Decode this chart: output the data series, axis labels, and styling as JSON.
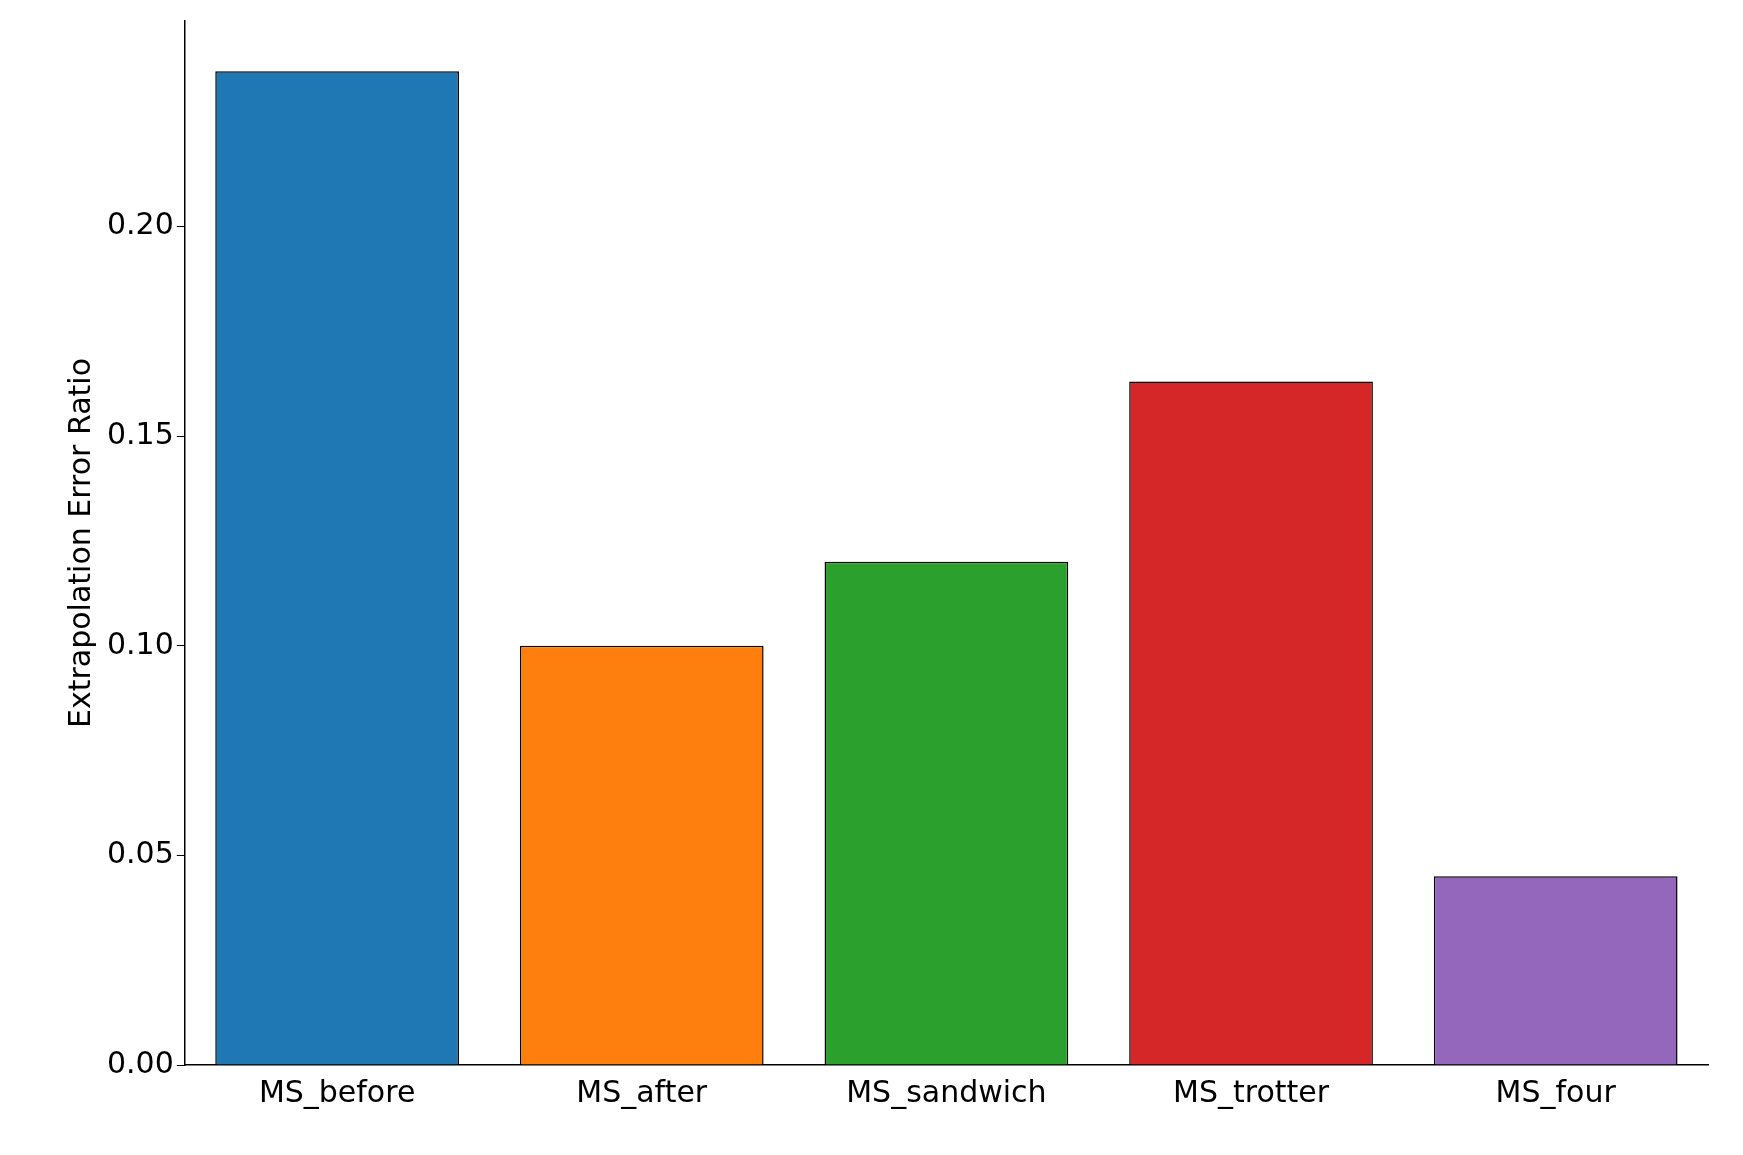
{
  "chart_data": {
    "type": "bar",
    "ylabel": "Extrapolation Error Ratio",
    "categories": [
      "MS_before",
      "MS_after",
      "MS_sandwich",
      "MS_trotter",
      "MS_four"
    ],
    "values": [
      0.237,
      0.1,
      0.12,
      0.163,
      0.045
    ],
    "colors": [
      "#1f77b4",
      "#ff7f0e",
      "#2ca02c",
      "#d62728",
      "#9467bd"
    ],
    "ylim": [
      0,
      0.249
    ],
    "yticks": [
      {
        "value": 0,
        "label": "0.00"
      },
      {
        "value": 0.05,
        "label": "0.05"
      },
      {
        "value": 0.1,
        "label": "0.10"
      },
      {
        "value": 0.15,
        "label": "0.15"
      },
      {
        "value": 0.2,
        "label": "0.20"
      }
    ],
    "grid": false,
    "legend": false
  }
}
